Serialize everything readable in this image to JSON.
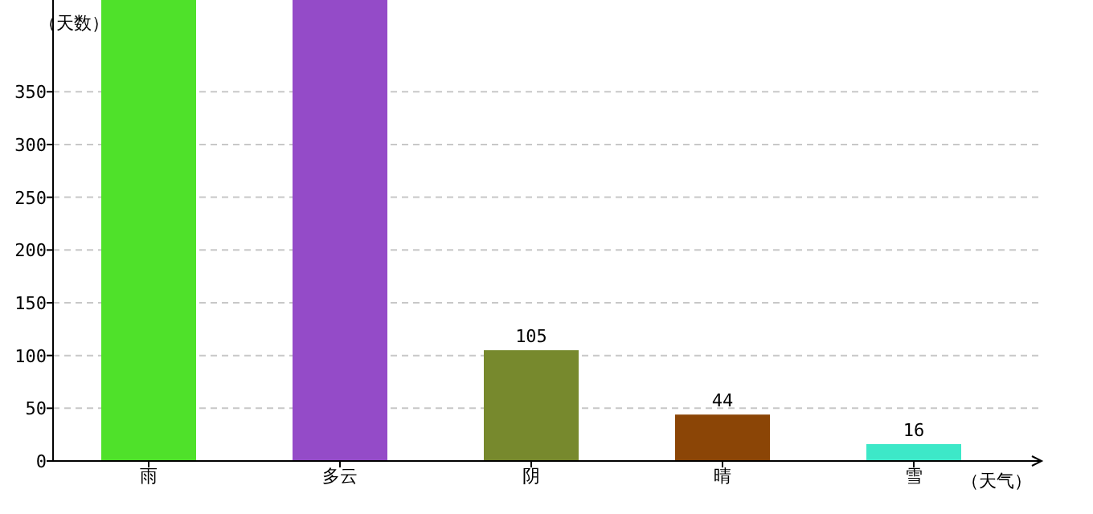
{
  "chart_data": {
    "type": "bar",
    "xlabel": "（天气）",
    "ylabel": "（天数）",
    "categories": [
      "雨",
      "多云",
      "阴",
      "晴",
      "雪"
    ],
    "values": [
      437,
      437,
      105,
      44,
      16
    ],
    "colors": [
      "#4fe12a",
      "#944bc8",
      "#77892d",
      "#8b4506",
      "#3de8c8"
    ],
    "value_labels": [
      null,
      null,
      "105",
      "44",
      "16"
    ],
    "ylim": [
      0,
      437
    ],
    "yticks": [
      0,
      50,
      100,
      150,
      200,
      250,
      300,
      350
    ],
    "grid": "y"
  }
}
